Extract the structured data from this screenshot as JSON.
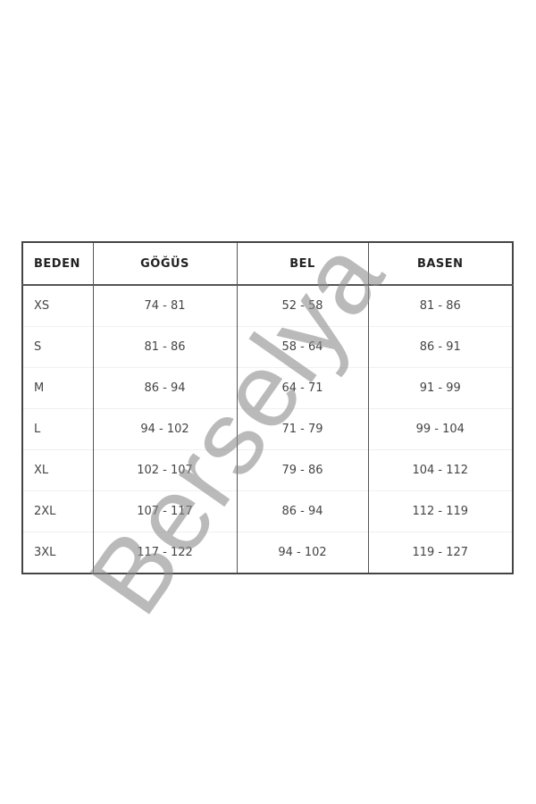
{
  "table": {
    "headers": [
      "BEDEN",
      "GÖĞÜS",
      "BEL",
      "BASEN"
    ],
    "rows": [
      [
        "XS",
        "74 - 81",
        "52 - 58",
        "81 - 86"
      ],
      [
        "S",
        "81 - 86",
        "58 - 64",
        "86 - 91"
      ],
      [
        "M",
        "86 - 94",
        "64 - 71",
        "91 - 99"
      ],
      [
        "L",
        "94 - 102",
        "71 - 79",
        "99 - 104"
      ],
      [
        "XL",
        "102 - 107",
        "79 - 86",
        "104 - 112"
      ],
      [
        "2XL",
        "107 - 117",
        "86 - 94",
        "112 - 119"
      ],
      [
        "3XL",
        "117 - 122",
        "94 - 102",
        "119 - 127"
      ]
    ]
  },
  "watermark": "Berselya"
}
